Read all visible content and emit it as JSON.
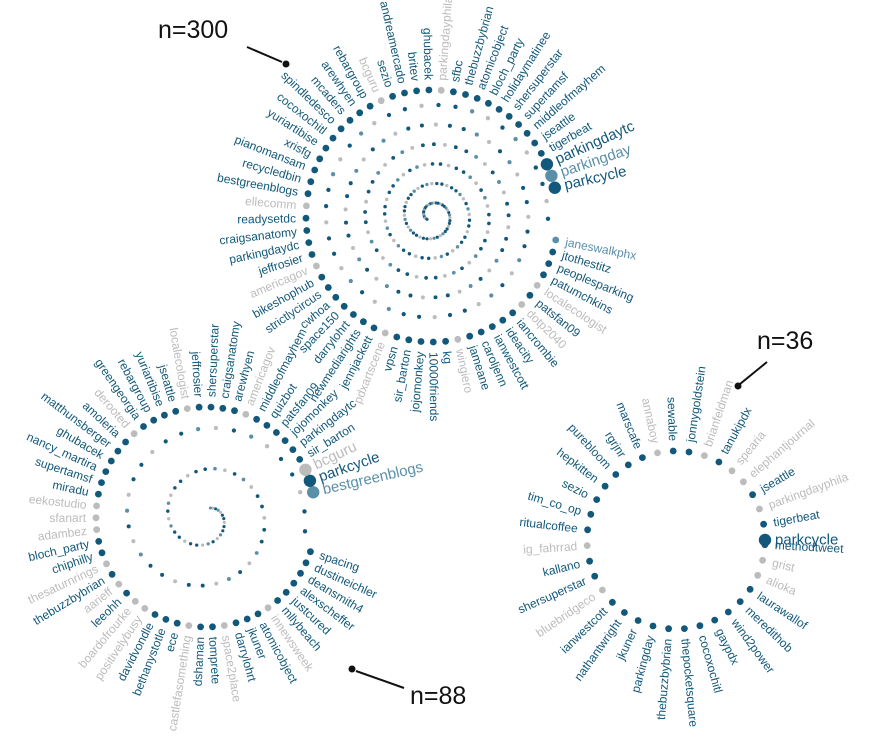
{
  "colors": {
    "dark": "#12587a",
    "mid": "#5b8fa8",
    "gray": "#bcbcbc",
    "ink": "#111111"
  },
  "clusters": [
    {
      "name": "cluster-300",
      "label": "n=300",
      "highlighted": [
        {
          "text": "parkcycle",
          "shade": "dark",
          "size": "l"
        },
        {
          "text": "parkingday",
          "shade": "mid",
          "size": "l"
        },
        {
          "text": "parkingdaytc",
          "shade": "dark",
          "size": "l"
        },
        {
          "text": "tigerbeat",
          "shade": "dark",
          "size": "m"
        },
        {
          "text": "jseattle",
          "shade": "dark",
          "size": "m"
        },
        {
          "text": "middleofmayhem",
          "shade": "dark",
          "size": "m"
        },
        {
          "text": "supertamsf",
          "shade": "dark",
          "size": "m"
        },
        {
          "text": "shersuperstar",
          "shade": "dark",
          "size": "m"
        },
        {
          "text": "holidaymatinee",
          "shade": "dark",
          "size": "m"
        },
        {
          "text": "bloch_party",
          "shade": "dark",
          "size": "m"
        },
        {
          "text": "atomicobject",
          "shade": "dark",
          "size": "m"
        },
        {
          "text": "thebuzzbybrian",
          "shade": "dark",
          "size": "m"
        },
        {
          "text": "sfbc",
          "shade": "dark",
          "size": "m"
        },
        {
          "text": "parkingdayphila",
          "shade": "gray",
          "size": "m"
        },
        {
          "text": "ghubacek",
          "shade": "dark",
          "size": "m"
        },
        {
          "text": "britev",
          "shade": "dark",
          "size": "m"
        },
        {
          "text": "andreamercado",
          "shade": "dark",
          "size": "m"
        },
        {
          "text": "sezio",
          "shade": "dark",
          "size": "m"
        },
        {
          "text": "bcguru",
          "shade": "gray",
          "size": "m"
        },
        {
          "text": "rebargroup",
          "shade": "dark",
          "size": "m"
        },
        {
          "text": "arewhyen",
          "shade": "dark",
          "size": "m"
        },
        {
          "text": "mcaders",
          "shade": "dark",
          "size": "m"
        },
        {
          "text": "spindledesco",
          "shade": "dark",
          "size": "m"
        },
        {
          "text": "cocoxochitl",
          "shade": "dark",
          "size": "m"
        },
        {
          "text": "yuriartibise",
          "shade": "dark",
          "size": "m"
        },
        {
          "text": "xrisfg",
          "shade": "dark",
          "size": "m"
        },
        {
          "text": "pianomansam",
          "shade": "dark",
          "size": "m"
        },
        {
          "text": "recycledbin",
          "shade": "dark",
          "size": "m"
        },
        {
          "text": "bestgreenblogs",
          "shade": "dark",
          "size": "m"
        },
        {
          "text": "ellecomm",
          "shade": "gray",
          "size": "m"
        },
        {
          "text": "readysetdc",
          "shade": "dark",
          "size": "m"
        },
        {
          "text": "craigsanatomy",
          "shade": "dark",
          "size": "m"
        },
        {
          "text": "parkingdaydc",
          "shade": "dark",
          "size": "m"
        },
        {
          "text": "jeffrosier",
          "shade": "dark",
          "size": "m"
        },
        {
          "text": "americagov",
          "shade": "gray",
          "size": "m"
        },
        {
          "text": "bikeshophub",
          "shade": "dark",
          "size": "m"
        },
        {
          "text": "strictlycircus",
          "shade": "dark",
          "size": "m"
        },
        {
          "text": "cwhoa",
          "shade": "dark",
          "size": "m"
        },
        {
          "text": "space150",
          "shade": "dark",
          "size": "m"
        },
        {
          "text": "darrylohrt",
          "shade": "dark",
          "size": "m"
        },
        {
          "text": "newmediarights",
          "shade": "dark",
          "size": "m"
        },
        {
          "text": "jennjackett",
          "shade": "dark",
          "size": "m"
        },
        {
          "text": "pdxartscene",
          "shade": "gray",
          "size": "m"
        },
        {
          "text": "vpsn",
          "shade": "dark",
          "size": "m"
        },
        {
          "text": "sir_barton",
          "shade": "dark",
          "size": "m"
        },
        {
          "text": "jojomonkey",
          "shade": "dark",
          "size": "m"
        },
        {
          "text": "10000friends",
          "shade": "dark",
          "size": "m"
        },
        {
          "text": "kg",
          "shade": "dark",
          "size": "m"
        },
        {
          "text": "wingiero",
          "shade": "gray",
          "size": "m"
        },
        {
          "text": "jameane",
          "shade": "dark",
          "size": "m"
        },
        {
          "text": "caroljenn",
          "shade": "dark",
          "size": "m"
        },
        {
          "text": "ianwestcott",
          "shade": "dark",
          "size": "m"
        },
        {
          "text": "ideacity",
          "shade": "dark",
          "size": "m"
        },
        {
          "text": "iancrombie",
          "shade": "dark",
          "size": "m"
        },
        {
          "text": "dotp2040",
          "shade": "gray",
          "size": "m"
        },
        {
          "text": "patsfan09",
          "shade": "dark",
          "size": "m"
        },
        {
          "text": "localecologist",
          "shade": "gray",
          "size": "m"
        },
        {
          "text": "patumchkins",
          "shade": "dark",
          "size": "m"
        },
        {
          "text": "peoplesparking",
          "shade": "dark",
          "size": "m"
        },
        {
          "text": "jtothestitz",
          "shade": "dark",
          "size": "m"
        },
        {
          "text": "janeswalkphx",
          "shade": "mid",
          "size": "m"
        }
      ]
    },
    {
      "name": "cluster-88",
      "label": "n=88",
      "highlighted": [
        {
          "text": "bestgreenblogs",
          "shade": "mid",
          "size": "l"
        },
        {
          "text": "parkcycle",
          "shade": "dark",
          "size": "l"
        },
        {
          "text": "bcguru",
          "shade": "gray",
          "size": "l"
        },
        {
          "text": "sir_barton",
          "shade": "dark",
          "size": "m"
        },
        {
          "text": "parkingdaytc",
          "shade": "dark",
          "size": "m"
        },
        {
          "text": "jojomonkey",
          "shade": "dark",
          "size": "m"
        },
        {
          "text": "patsfan09",
          "shade": "dark",
          "size": "m"
        },
        {
          "text": "quizbot",
          "shade": "dark",
          "size": "m"
        },
        {
          "text": "middleofmayhem",
          "shade": "dark",
          "size": "m"
        },
        {
          "text": "americagov",
          "shade": "gray",
          "size": "m"
        },
        {
          "text": "arewhyen",
          "shade": "dark",
          "size": "m"
        },
        {
          "text": "craigsanatomy",
          "shade": "dark",
          "size": "m"
        },
        {
          "text": "shersuperstar",
          "shade": "dark",
          "size": "m"
        },
        {
          "text": "jeffrosier",
          "shade": "dark",
          "size": "m"
        },
        {
          "text": "localecologist",
          "shade": "gray",
          "size": "m"
        },
        {
          "text": "jseattle",
          "shade": "dark",
          "size": "m"
        },
        {
          "text": "yuriartibise",
          "shade": "dark",
          "size": "m"
        },
        {
          "text": "rebargroup",
          "shade": "dark",
          "size": "m"
        },
        {
          "text": "greengeorgia",
          "shade": "dark",
          "size": "m"
        },
        {
          "text": "derooted",
          "shade": "gray",
          "size": "m"
        },
        {
          "text": "amoleria",
          "shade": "dark",
          "size": "m"
        },
        {
          "text": "matthunsberger",
          "shade": "dark",
          "size": "m"
        },
        {
          "text": "ghubacek",
          "shade": "dark",
          "size": "m"
        },
        {
          "text": "nancy_martira",
          "shade": "dark",
          "size": "m"
        },
        {
          "text": "supertamsf",
          "shade": "dark",
          "size": "m"
        },
        {
          "text": "miradu",
          "shade": "dark",
          "size": "m"
        },
        {
          "text": "eekostudio",
          "shade": "gray",
          "size": "m"
        },
        {
          "text": "sfanart",
          "shade": "gray",
          "size": "m"
        },
        {
          "text": "adambez",
          "shade": "gray",
          "size": "m"
        },
        {
          "text": "bloch_party",
          "shade": "dark",
          "size": "m"
        },
        {
          "text": "chiphilly",
          "shade": "dark",
          "size": "m"
        },
        {
          "text": "thesaturnrings",
          "shade": "gray",
          "size": "m"
        },
        {
          "text": "thebuzzbybrian",
          "shade": "dark",
          "size": "m"
        },
        {
          "text": "aarieff",
          "shade": "gray",
          "size": "m"
        },
        {
          "text": "leeohh",
          "shade": "dark",
          "size": "m"
        },
        {
          "text": "boardofrourke",
          "shade": "gray",
          "size": "m"
        },
        {
          "text": "positivelybusy",
          "shade": "gray",
          "size": "m"
        },
        {
          "text": "davidvondle",
          "shade": "dark",
          "size": "m"
        },
        {
          "text": "bethanystotle",
          "shade": "dark",
          "size": "m"
        },
        {
          "text": "ece",
          "shade": "dark",
          "size": "m"
        },
        {
          "text": "castlefasomething",
          "shade": "gray",
          "size": "m"
        },
        {
          "text": "dshaman",
          "shade": "dark",
          "size": "m"
        },
        {
          "text": "tomprete",
          "shade": "dark",
          "size": "m"
        },
        {
          "text": "space2place",
          "shade": "gray",
          "size": "m"
        },
        {
          "text": "darrylohrt",
          "shade": "dark",
          "size": "m"
        },
        {
          "text": "jkuner",
          "shade": "dark",
          "size": "m"
        },
        {
          "text": "atomicobject",
          "shade": "dark",
          "size": "m"
        },
        {
          "text": "innewsweek",
          "shade": "gray",
          "size": "m"
        },
        {
          "text": "mllybeach",
          "shade": "dark",
          "size": "m"
        },
        {
          "text": "justcured",
          "shade": "dark",
          "size": "m"
        },
        {
          "text": "alexscheffer",
          "shade": "dark",
          "size": "m"
        },
        {
          "text": "deansmith4",
          "shade": "dark",
          "size": "m"
        },
        {
          "text": "dustineichler",
          "shade": "dark",
          "size": "m"
        },
        {
          "text": "spacing",
          "shade": "dark",
          "size": "m"
        }
      ]
    },
    {
      "name": "cluster-36",
      "label": "n=36",
      "highlighted": [
        {
          "text": "parkcycle",
          "shade": "dark",
          "size": "l"
        },
        {
          "text": "tigerbeat",
          "shade": "dark",
          "size": "m"
        },
        {
          "text": "parkingdayphila",
          "shade": "gray",
          "size": "m"
        },
        {
          "text": "jseattle",
          "shade": "dark",
          "size": "m"
        },
        {
          "text": "elephantjournal",
          "shade": "gray",
          "size": "m"
        },
        {
          "text": "spearia",
          "shade": "gray",
          "size": "m"
        },
        {
          "text": "tanukipdx",
          "shade": "dark",
          "size": "m"
        },
        {
          "text": "brianfeldman",
          "shade": "gray",
          "size": "m"
        },
        {
          "text": "jonnygoldstein",
          "shade": "dark",
          "size": "m"
        },
        {
          "text": "sewable",
          "shade": "dark",
          "size": "m"
        },
        {
          "text": "annaboy",
          "shade": "gray",
          "size": "m"
        },
        {
          "text": "marscafe",
          "shade": "dark",
          "size": "m"
        },
        {
          "text": "rgrjnr",
          "shade": "dark",
          "size": "m"
        },
        {
          "text": "purebloom",
          "shade": "dark",
          "size": "m"
        },
        {
          "text": "hepkitten",
          "shade": "dark",
          "size": "m"
        },
        {
          "text": "sezio",
          "shade": "dark",
          "size": "m"
        },
        {
          "text": "tim_co_op",
          "shade": "dark",
          "size": "m"
        },
        {
          "text": "ritualcoffee",
          "shade": "dark",
          "size": "m"
        },
        {
          "text": "ig_fahrrad",
          "shade": "gray",
          "size": "m"
        },
        {
          "text": "kallano",
          "shade": "dark",
          "size": "m"
        },
        {
          "text": "shersuperstar",
          "shade": "dark",
          "size": "m"
        },
        {
          "text": "bluebridgeco",
          "shade": "gray",
          "size": "m"
        },
        {
          "text": "ianwestcott",
          "shade": "dark",
          "size": "m"
        },
        {
          "text": "nathantwright",
          "shade": "dark",
          "size": "m"
        },
        {
          "text": "jkuner",
          "shade": "dark",
          "size": "m"
        },
        {
          "text": "parkingday",
          "shade": "dark",
          "size": "m"
        },
        {
          "text": "thebuzzbybrian",
          "shade": "dark",
          "size": "m"
        },
        {
          "text": "thepocketsquare",
          "shade": "dark",
          "size": "m"
        },
        {
          "text": "cocoxochitl",
          "shade": "dark",
          "size": "m"
        },
        {
          "text": "gaypdx",
          "shade": "dark",
          "size": "m"
        },
        {
          "text": "wind2power",
          "shade": "dark",
          "size": "m"
        },
        {
          "text": "meredithob",
          "shade": "dark",
          "size": "m"
        },
        {
          "text": "laurawallof",
          "shade": "dark",
          "size": "m"
        },
        {
          "text": "alioka",
          "shade": "gray",
          "size": "m"
        },
        {
          "text": "grist",
          "shade": "gray",
          "size": "m"
        },
        {
          "text": "methodtweet",
          "shade": "dark",
          "size": "m"
        }
      ]
    }
  ]
}
